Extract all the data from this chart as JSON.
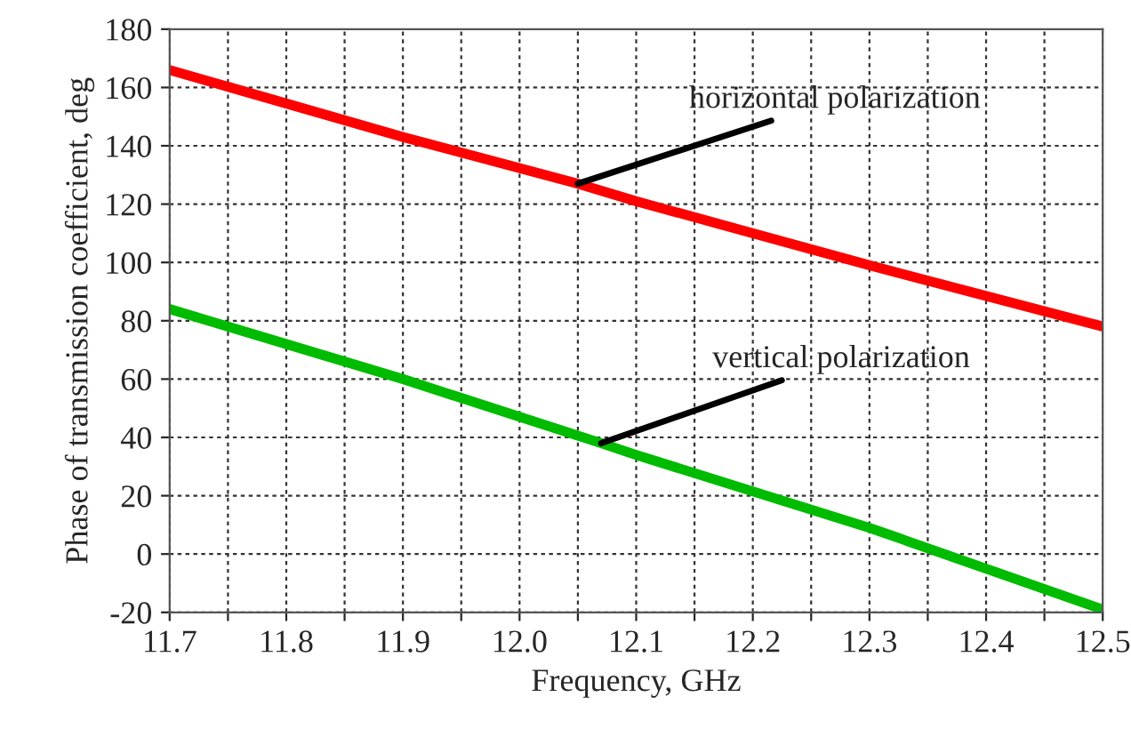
{
  "chart_data": {
    "type": "line",
    "xlabel": "Frequency, GHz",
    "ylabel": "Phase of transmission coefficient, deg",
    "series": [
      {
        "color": "#ff0000",
        "x": [
          11.7,
          11.9,
          12.05,
          12.1,
          12.3,
          12.5
        ],
        "values": [
          166,
          143,
          127,
          121,
          99,
          78
        ]
      },
      {
        "color": "#00bb00",
        "x": [
          11.7,
          11.9,
          12.07,
          12.1,
          12.3,
          12.5
        ],
        "values": [
          84,
          60,
          38,
          34,
          9,
          -19
        ]
      }
    ],
    "annotations": [
      {
        "text": "horizontal polarization",
        "x": 12.05,
        "y": 127
      },
      {
        "text": "vertical polarization",
        "x": 12.07,
        "y": 38
      }
    ],
    "xlim": [
      11.7,
      12.5
    ],
    "ylim": [
      -20,
      180
    ],
    "xticks": [
      11.7,
      {
        "value": 11.75,
        "label": null
      },
      11.8,
      {
        "value": 11.85,
        "label": null
      },
      11.9,
      {
        "value": 11.95,
        "label": null
      },
      {
        "value": 12.0,
        "label": "12.0"
      },
      {
        "value": 12.05,
        "label": null
      },
      12.1,
      {
        "value": 12.15,
        "label": null
      },
      12.2,
      {
        "value": 12.25,
        "label": null
      },
      12.3,
      {
        "value": 12.35,
        "label": null
      },
      12.4,
      {
        "value": 12.45,
        "label": null
      },
      12.5
    ],
    "yticks": [
      -20,
      0,
      20,
      40,
      60,
      80,
      100,
      120,
      140,
      160,
      180
    ],
    "grid": true,
    "line_style": "solid",
    "marker": "none"
  }
}
